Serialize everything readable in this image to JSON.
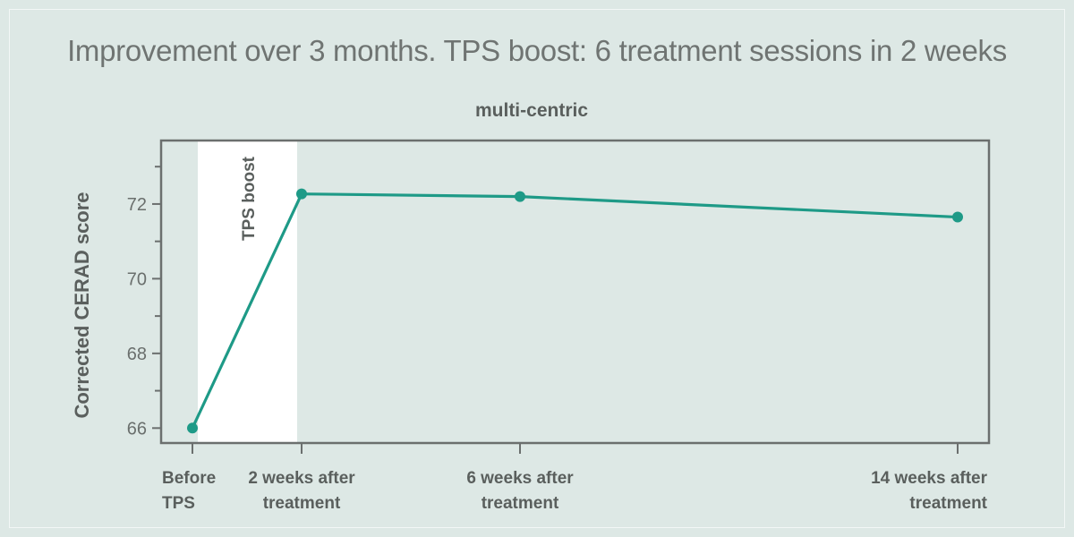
{
  "chart_data": {
    "type": "line",
    "title": "Improvement over 3 months. TPS boost: 6 treatment sessions in 2 weeks",
    "subtitle": "multi-centric",
    "xlabel": "",
    "ylabel": "Corrected CERAD score",
    "x_weeks": [
      0,
      2,
      6,
      14
    ],
    "categories": [
      [
        "Before",
        "TPS"
      ],
      [
        "2 weeks after",
        "treatment"
      ],
      [
        "6 weeks after",
        "treatment"
      ],
      [
        "14 weeks after",
        "treatment"
      ]
    ],
    "series": [
      {
        "name": "multi-centric",
        "values": [
          66.0,
          72.27,
          72.2,
          71.65
        ]
      }
    ],
    "ylim": [
      65.6,
      73.7
    ],
    "yticks": [
      66,
      68,
      70,
      72
    ],
    "grid": false,
    "legend": "none",
    "annotations": [
      {
        "type": "shaded_band",
        "from_week": 0,
        "to_week": 2,
        "label": "TPS boost"
      }
    ],
    "colors": {
      "line": "#1e9a87",
      "marker": "#1e9a87",
      "axis": "#6b6f6e",
      "band": "#ffffff",
      "background": "#dde8e5"
    }
  }
}
